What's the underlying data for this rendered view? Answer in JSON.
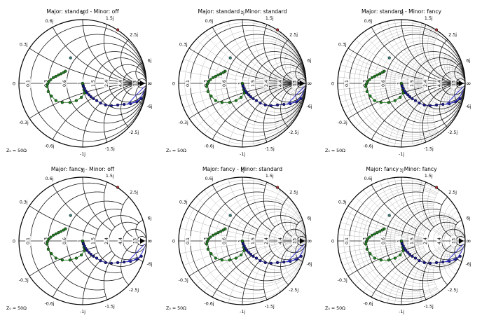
{
  "chart_data": {
    "type": "scatter",
    "projection": "smith",
    "reference_impedance_label": "Z₀ = 50Ω",
    "real_axis_labels": [
      "0",
      "0.1",
      "0.3",
      "0.6",
      "1",
      "1.5",
      "2.4",
      "4.4",
      "13",
      "∞"
    ],
    "imag_axis_labels": [
      "0.3j",
      "0.6j",
      "1j",
      "1.5j",
      "2.5j",
      "6j",
      "-0.3j",
      "-0.6j",
      "-1j",
      "-1.5j",
      "-2.5j",
      "-6j"
    ],
    "panels": [
      {
        "title": "Major: standard - Minor: off",
        "major": "standard",
        "minor": "off"
      },
      {
        "title": "Major: standard - Minor: standard",
        "major": "standard",
        "minor": "standard"
      },
      {
        "title": "Major: standard - Minor: fancy",
        "major": "standard",
        "minor": "fancy"
      },
      {
        "title": "Major: fancy - Minor: off",
        "major": "fancy",
        "minor": "off"
      },
      {
        "title": "Major: fancy - Minor: standard",
        "major": "fancy",
        "minor": "standard"
      },
      {
        "title": "Major: fancy - Minor: fancy",
        "major": "fancy",
        "minor": "fancy"
      }
    ],
    "series": [
      {
        "color": "#1e7d1e",
        "style": "markers+line",
        "points_gamma": [
          [
            -0.27,
            0.19
          ],
          [
            -0.3,
            0.17
          ],
          [
            -0.34,
            0.15
          ],
          [
            -0.38,
            0.13
          ],
          [
            -0.42,
            0.11
          ],
          [
            -0.46,
            0.09
          ],
          [
            -0.5,
            0.06
          ],
          [
            -0.53,
            0.03
          ],
          [
            -0.55,
            -0.01
          ],
          [
            -0.56,
            -0.05
          ],
          [
            -0.54,
            -0.13
          ],
          [
            -0.49,
            -0.2
          ],
          [
            -0.42,
            -0.27
          ],
          [
            -0.32,
            -0.3
          ],
          [
            -0.2,
            -0.3
          ],
          [
            -0.1,
            -0.27
          ],
          [
            -0.02,
            -0.22
          ],
          [
            0.03,
            -0.15
          ],
          [
            0.02,
            -0.1
          ],
          [
            0.01,
            -0.05
          ],
          [
            0.005,
            -0.02
          ],
          [
            0.0,
            0.0
          ]
        ]
      },
      {
        "color": "#1a1a8c",
        "style": "markers+line",
        "points_gamma": [
          [
            0.01,
            -0.04
          ],
          [
            0.03,
            -0.08
          ],
          [
            0.05,
            -0.12
          ],
          [
            0.07,
            -0.15
          ],
          [
            0.1,
            -0.18
          ],
          [
            0.13,
            -0.21
          ],
          [
            0.17,
            -0.24
          ],
          [
            0.22,
            -0.27
          ],
          [
            0.28,
            -0.31
          ],
          [
            0.36,
            -0.34
          ],
          [
            0.45,
            -0.35
          ],
          [
            0.55,
            -0.34
          ],
          [
            0.65,
            -0.33
          ],
          [
            0.75,
            -0.32
          ],
          [
            0.85,
            -0.29
          ],
          [
            0.92,
            -0.24
          ]
        ]
      },
      {
        "color": "#2b2bd0",
        "style": "line",
        "points_gamma": [
          [
            0.7,
            -0.33
          ],
          [
            0.8,
            -0.3
          ],
          [
            0.88,
            -0.26
          ],
          [
            0.93,
            -0.19
          ],
          [
            0.97,
            -0.1
          ]
        ]
      },
      {
        "color": "#2b2bd0",
        "style": "line",
        "points_gamma": [
          [
            0.7,
            -0.33
          ],
          [
            0.97,
            -0.05
          ]
        ]
      },
      {
        "color": "#3a7a7a",
        "style": "markers",
        "points_gamma": [
          [
            -0.19,
            0.4
          ]
        ]
      },
      {
        "color": "#a03030",
        "style": "markers",
        "points_gamma": [
          [
            0.55,
            0.84
          ]
        ]
      }
    ]
  }
}
